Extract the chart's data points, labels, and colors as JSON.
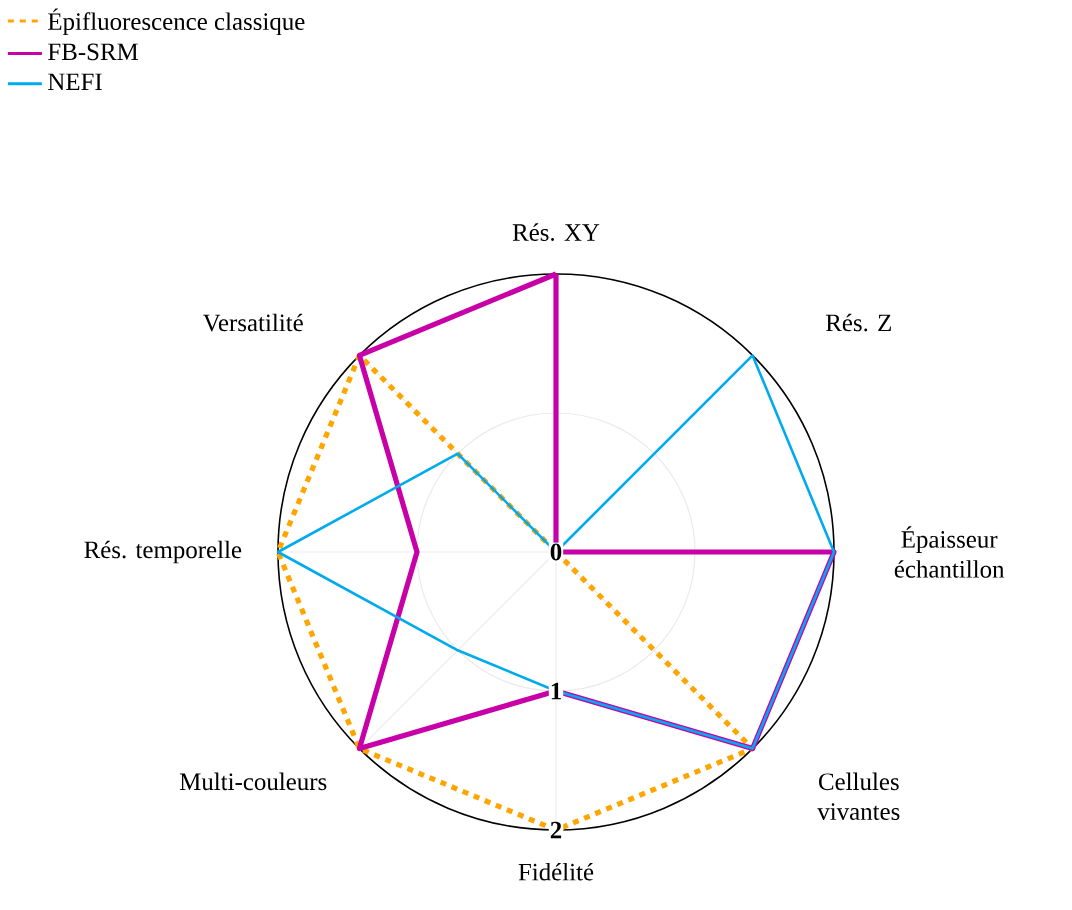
{
  "chart_data": {
    "type": "radar",
    "categories": [
      "Rés. XY",
      "Rés. Z",
      "Épaisseur échantillon",
      "Cellules vivantes",
      "Fidélité",
      "Multi-couleurs",
      "Rés. temporelle",
      "Versatilité"
    ],
    "series": [
      {
        "name": "Épifluorescence classique",
        "color": "#ffa500",
        "line_style": "dashed",
        "values": [
          0,
          0,
          0,
          2,
          2,
          2,
          2,
          2
        ]
      },
      {
        "name": "FB-SRM",
        "color": "#c800a8",
        "values": [
          2,
          0,
          2,
          2,
          1,
          2,
          1,
          2
        ]
      },
      {
        "name": "NEFI",
        "color": "#00aaee",
        "values": [
          0,
          2,
          2,
          2,
          1,
          1,
          2,
          1
        ]
      }
    ],
    "ylim": [
      0,
      2
    ],
    "yticks": [
      0,
      1,
      2
    ],
    "grid": true,
    "legend": "top left",
    "marker": "none"
  }
}
